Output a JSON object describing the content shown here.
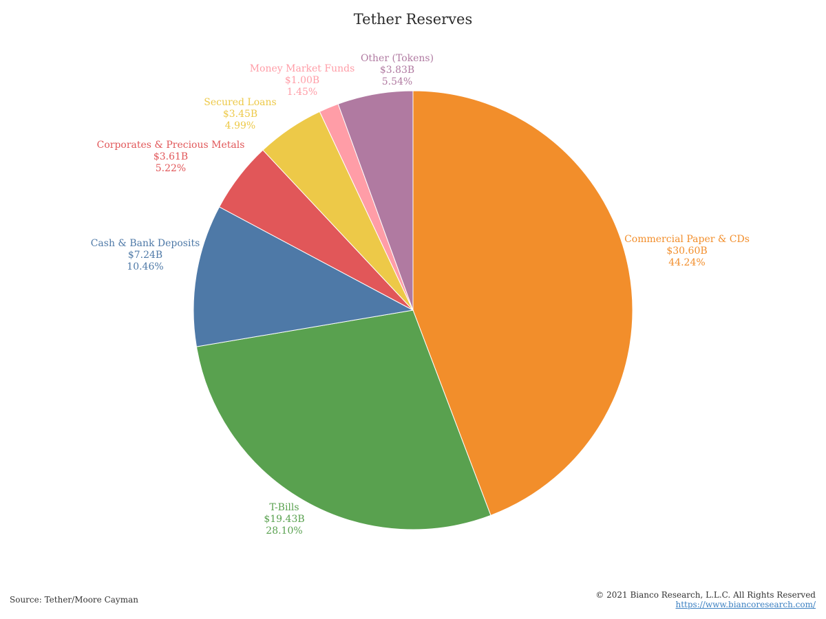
{
  "chart_data": {
    "type": "pie",
    "title": "Tether Reserves",
    "slices": [
      {
        "label": "Commercial Paper & CDs",
        "amount": "$30.60B",
        "percent_label": "44.24%",
        "value": 44.24,
        "color": "#f28e2b"
      },
      {
        "label": "T-Bills",
        "amount": "$19.43B",
        "percent_label": "28.10%",
        "value": 28.1,
        "color": "#59a14f"
      },
      {
        "label": "Cash & Bank Deposits",
        "amount": "$7.24B",
        "percent_label": "10.46%",
        "value": 10.46,
        "color": "#4e79a7"
      },
      {
        "label": "Corporates & Precious Metals",
        "amount": "$3.61B",
        "percent_label": "5.22%",
        "value": 5.22,
        "color": "#e15759"
      },
      {
        "label": "Secured Loans",
        "amount": "$3.45B",
        "percent_label": "4.99%",
        "value": 4.99,
        "color": "#edc948"
      },
      {
        "label": "Money Market Funds",
        "amount": "$1.00B",
        "percent_label": "1.45%",
        "value": 1.45,
        "color": "#ff9da7"
      },
      {
        "label": "Other (Tokens)",
        "amount": "$3.83B",
        "percent_label": "5.54%",
        "value": 5.54,
        "color": "#b07aa1"
      }
    ]
  },
  "footer": {
    "source": "Source: Tether/Moore Cayman",
    "copyright": "© 2021 Bianco Research, L.L.C. All Rights Reserved",
    "url": "https://www.biancoresearch.com/"
  }
}
